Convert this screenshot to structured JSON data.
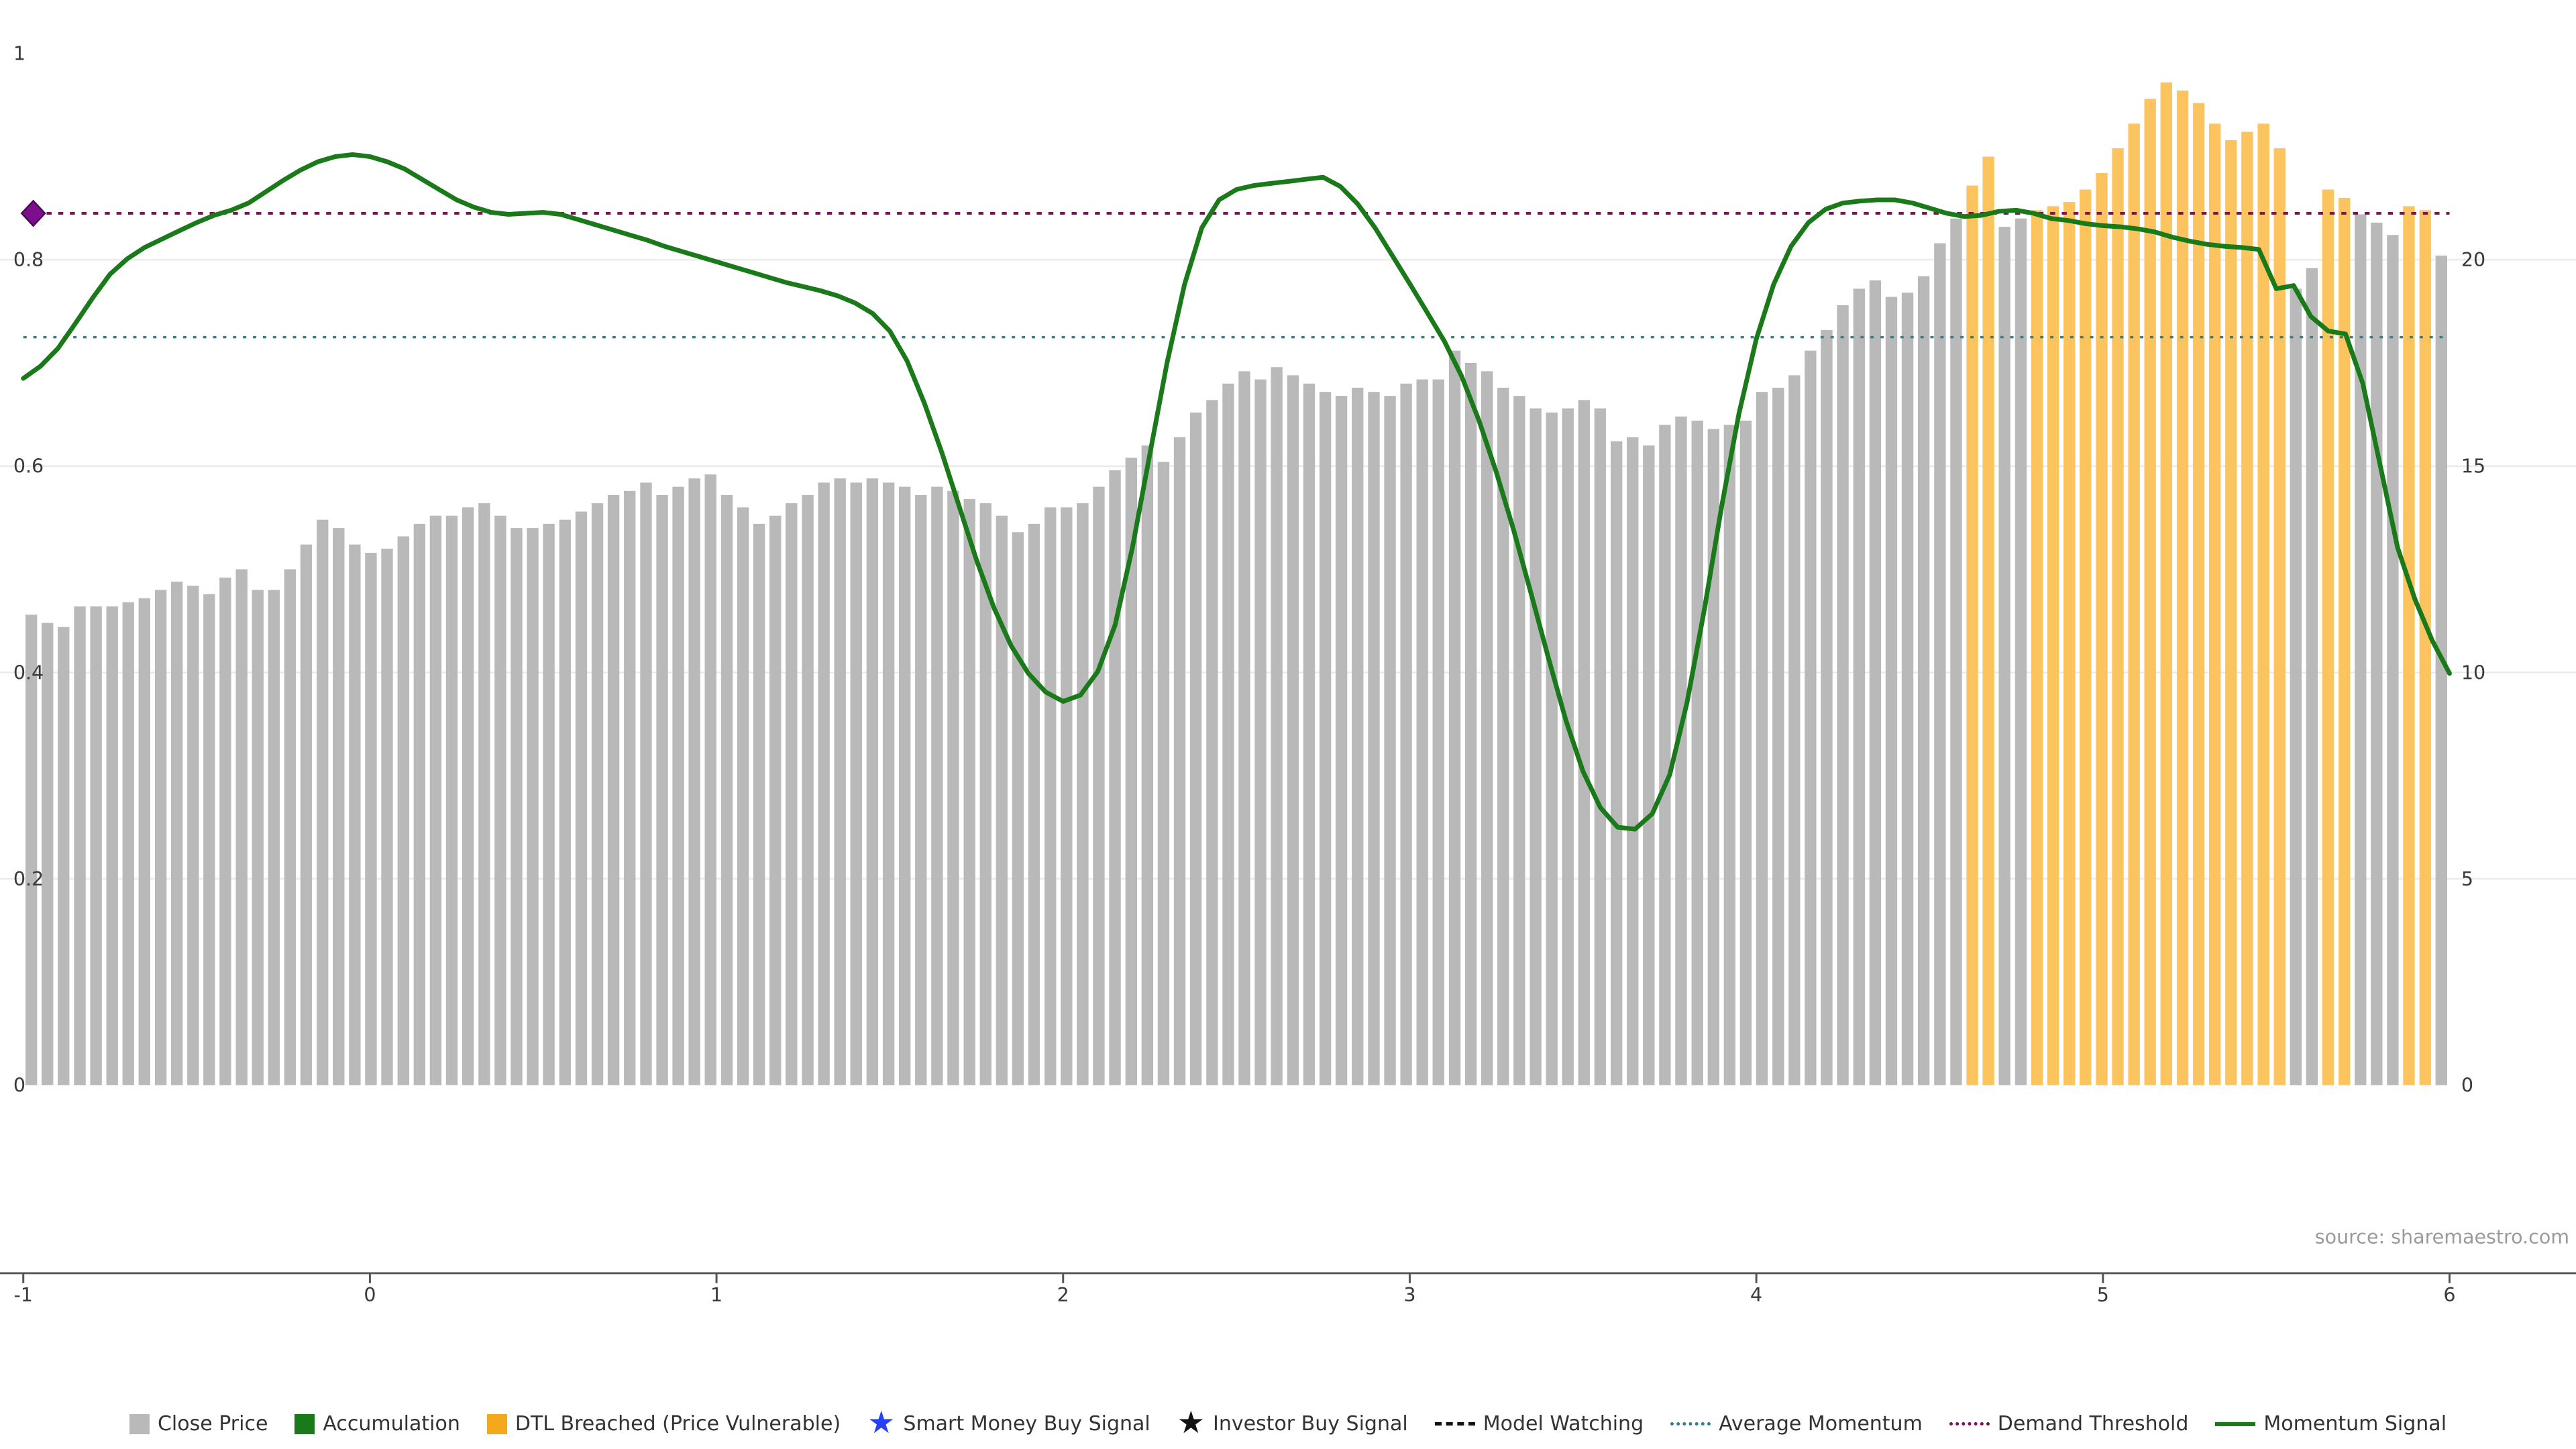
{
  "source": {
    "text": "source: sharemaestro.com"
  },
  "colors": {
    "background": "#ffffff",
    "close_price_bar": "#b9b9b9",
    "dtl_breached_bar": "#FCC45E",
    "momentum_line": "#1a7a1a",
    "average_momentum_line": "#35808E",
    "demand_threshold_line": "#7B1450",
    "threshold_marker": "#7D0E8E",
    "axis_line": "#555555",
    "axis_text": "#3a3a3a",
    "grid": "#ebebeb",
    "source_text": "#9a9a9a",
    "legend_text": "#333333",
    "smart_money_star": "#2741F0",
    "investor_star": "#111111",
    "model_watching": "#111111"
  },
  "legend": [
    {
      "label": "Close Price",
      "swatch": "square",
      "color": "#b9b9b9"
    },
    {
      "label": "Accumulation",
      "swatch": "square",
      "color": "#1a7a1a"
    },
    {
      "label": "DTL Breached (Price Vulnerable)",
      "swatch": "square",
      "color": "#F4A81D"
    },
    {
      "label": "Smart Money Buy Signal",
      "swatch": "star",
      "color": "#2741F0"
    },
    {
      "label": "Investor Buy Signal",
      "swatch": "star",
      "color": "#111111"
    },
    {
      "label": "Model Watching",
      "swatch": "dashed-line",
      "color": "#111111"
    },
    {
      "label": "Average Momentum",
      "swatch": "dotted-line",
      "color": "#35808E"
    },
    {
      "label": "Demand Threshold",
      "swatch": "dotted-line",
      "color": "#7B1450"
    },
    {
      "label": "Momentum Signal",
      "swatch": "solid-line",
      "color": "#1a7a1a"
    }
  ],
  "chart_data": {
    "type": "bar+line",
    "title": "",
    "xlabel": "",
    "ylabel": "",
    "grid": "horizontal-light",
    "legend_position": "bottom-center",
    "x": {
      "range": [
        -1,
        6
      ],
      "ticks": [
        -1,
        0,
        1,
        2,
        3,
        4,
        5,
        6
      ]
    },
    "y_left": {
      "range": [
        0,
        1
      ],
      "ticks": [
        0,
        0.2,
        0.4,
        0.6,
        0.8,
        1
      ],
      "series": "Momentum Signal"
    },
    "y_right": {
      "range": [
        0,
        25
      ],
      "ticks": [
        0,
        5,
        10,
        15,
        20
      ],
      "series": "Close Price"
    },
    "close_price_bars": {
      "name": "Close Price",
      "axis": "right",
      "x_start": -0.977,
      "x_step": 0.046667,
      "values": [
        11.4,
        11.2,
        11.1,
        11.6,
        11.6,
        11.6,
        11.7,
        11.8,
        12.0,
        12.2,
        12.1,
        11.9,
        12.3,
        12.5,
        12.0,
        12.0,
        12.5,
        13.1,
        13.7,
        13.5,
        13.1,
        12.9,
        13.0,
        13.3,
        13.6,
        13.8,
        13.8,
        14.0,
        14.1,
        13.8,
        13.5,
        13.5,
        13.6,
        13.7,
        13.9,
        14.1,
        14.3,
        14.4,
        14.6,
        14.3,
        14.5,
        14.7,
        14.8,
        14.3,
        14.0,
        13.6,
        13.8,
        14.1,
        14.3,
        14.6,
        14.7,
        14.6,
        14.7,
        14.6,
        14.5,
        14.3,
        14.5,
        14.4,
        14.2,
        14.1,
        13.8,
        13.4,
        13.6,
        14.0,
        14.0,
        14.1,
        14.5,
        14.9,
        15.2,
        15.5,
        15.1,
        15.7,
        16.3,
        16.6,
        17.0,
        17.3,
        17.1,
        17.4,
        17.2,
        17.0,
        16.8,
        16.7,
        16.9,
        16.8,
        16.7,
        17.0,
        17.1,
        17.1,
        17.8,
        17.5,
        17.3,
        16.9,
        16.7,
        16.4,
        16.3,
        16.4,
        16.6,
        16.4,
        15.6,
        15.7,
        15.5,
        16.0,
        16.2,
        16.1,
        15.9,
        16.0,
        16.1,
        16.8,
        16.9,
        17.2,
        17.8,
        18.3,
        18.9,
        19.3,
        19.5,
        19.1,
        19.2,
        19.6,
        20.4,
        21.0,
        21.8,
        22.5,
        20.8,
        21.0,
        21.2,
        21.3,
        21.4,
        21.7,
        22.1,
        22.7,
        23.3,
        23.9,
        24.3,
        24.1,
        23.8,
        23.3,
        22.9,
        23.1,
        23.3,
        22.7,
        19.3,
        19.8,
        21.7,
        21.5,
        21.1,
        20.9,
        20.6,
        21.3,
        21.2,
        20.1
      ],
      "dtl_breached_indices": [
        120,
        121,
        124,
        125,
        126,
        127,
        128,
        129,
        130,
        131,
        132,
        133,
        134,
        135,
        136,
        137,
        138,
        139,
        142,
        143,
        147,
        148
      ]
    },
    "momentum_signal": {
      "name": "Momentum Signal",
      "axis": "left",
      "x_start": -1,
      "x_step": 0.05,
      "values": [
        0.685,
        0.697,
        0.714,
        0.738,
        0.763,
        0.786,
        0.801,
        0.812,
        0.82,
        0.828,
        0.836,
        0.843,
        0.848,
        0.855,
        0.866,
        0.877,
        0.887,
        0.895,
        0.9,
        0.902,
        0.9,
        0.895,
        0.888,
        0.878,
        0.868,
        0.858,
        0.851,
        0.846,
        0.844,
        0.845,
        0.846,
        0.844,
        0.839,
        0.834,
        0.829,
        0.824,
        0.819,
        0.813,
        0.808,
        0.803,
        0.798,
        0.793,
        0.788,
        0.783,
        0.778,
        0.774,
        0.77,
        0.765,
        0.758,
        0.748,
        0.731,
        0.702,
        0.661,
        0.613,
        0.561,
        0.509,
        0.463,
        0.426,
        0.399,
        0.381,
        0.372,
        0.378,
        0.401,
        0.446,
        0.521,
        0.611,
        0.7,
        0.776,
        0.831,
        0.858,
        0.868,
        0.872,
        0.874,
        0.876,
        0.878,
        0.88,
        0.871,
        0.854,
        0.831,
        0.804,
        0.777,
        0.749,
        0.721,
        0.687,
        0.644,
        0.594,
        0.538,
        0.477,
        0.414,
        0.354,
        0.304,
        0.269,
        0.25,
        0.248,
        0.263,
        0.301,
        0.371,
        0.461,
        0.561,
        0.651,
        0.723,
        0.776,
        0.813,
        0.836,
        0.849,
        0.855,
        0.857,
        0.858,
        0.858,
        0.855,
        0.85,
        0.845,
        0.842,
        0.843,
        0.847,
        0.848,
        0.845,
        0.84,
        0.838,
        0.835,
        0.833,
        0.832,
        0.83,
        0.827,
        0.822,
        0.818,
        0.815,
        0.813,
        0.812,
        0.81,
        0.772,
        0.775,
        0.745,
        0.731,
        0.728,
        0.68,
        0.601,
        0.521,
        0.471,
        0.431,
        0.399
      ]
    },
    "average_momentum": {
      "axis": "left",
      "value": 0.725
    },
    "demand_threshold": {
      "axis": "left",
      "value": 0.845,
      "marker": {
        "x": -1,
        "shape": "diamond"
      }
    }
  }
}
